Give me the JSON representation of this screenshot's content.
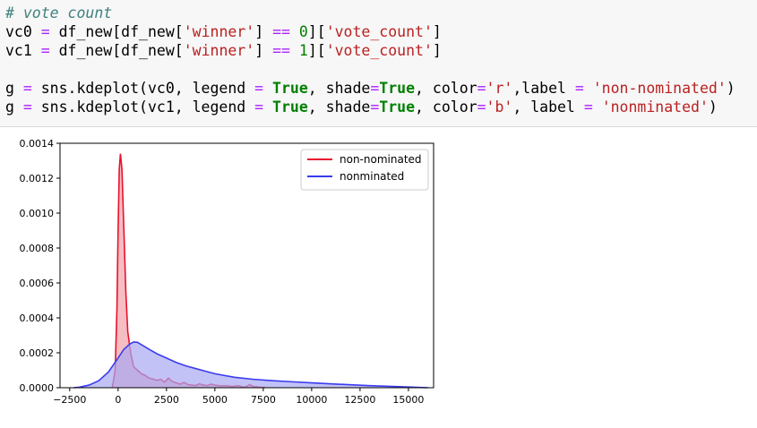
{
  "code_cell": {
    "lines": [
      [
        {
          "t": "# vote count",
          "c": "comment"
        }
      ],
      [
        {
          "t": "vc0 ",
          "c": ""
        },
        {
          "t": "=",
          "c": "op"
        },
        {
          "t": " df_new[df_new[",
          "c": ""
        },
        {
          "t": "'winner'",
          "c": "str"
        },
        {
          "t": "] ",
          "c": ""
        },
        {
          "t": "==",
          "c": "op"
        },
        {
          "t": " ",
          "c": ""
        },
        {
          "t": "0",
          "c": "num"
        },
        {
          "t": "][",
          "c": ""
        },
        {
          "t": "'vote_count'",
          "c": "str"
        },
        {
          "t": "]",
          "c": ""
        }
      ],
      [
        {
          "t": "vc1 ",
          "c": ""
        },
        {
          "t": "=",
          "c": "op"
        },
        {
          "t": " df_new[df_new[",
          "c": ""
        },
        {
          "t": "'winner'",
          "c": "str"
        },
        {
          "t": "] ",
          "c": ""
        },
        {
          "t": "==",
          "c": "op"
        },
        {
          "t": " ",
          "c": ""
        },
        {
          "t": "1",
          "c": "num"
        },
        {
          "t": "][",
          "c": ""
        },
        {
          "t": "'vote_count'",
          "c": "str"
        },
        {
          "t": "]",
          "c": ""
        }
      ],
      [
        {
          "t": "",
          "c": ""
        }
      ],
      [
        {
          "t": "g ",
          "c": ""
        },
        {
          "t": "=",
          "c": "op"
        },
        {
          "t": " sns.kdeplot(vc0, legend ",
          "c": ""
        },
        {
          "t": "=",
          "c": "op"
        },
        {
          "t": " ",
          "c": ""
        },
        {
          "t": "True",
          "c": "kw"
        },
        {
          "t": ", shade",
          "c": ""
        },
        {
          "t": "=",
          "c": "op"
        },
        {
          "t": "True",
          "c": "kw"
        },
        {
          "t": ", color",
          "c": ""
        },
        {
          "t": "=",
          "c": "op"
        },
        {
          "t": "'r'",
          "c": "str"
        },
        {
          "t": ",label ",
          "c": ""
        },
        {
          "t": "=",
          "c": "op"
        },
        {
          "t": " ",
          "c": ""
        },
        {
          "t": "'non-nominated'",
          "c": "str"
        },
        {
          "t": ")",
          "c": ""
        }
      ],
      [
        {
          "t": "g ",
          "c": ""
        },
        {
          "t": "=",
          "c": "op"
        },
        {
          "t": " sns.kdeplot(vc1, legend ",
          "c": ""
        },
        {
          "t": "=",
          "c": "op"
        },
        {
          "t": " ",
          "c": ""
        },
        {
          "t": "True",
          "c": "kw"
        },
        {
          "t": ", shade",
          "c": ""
        },
        {
          "t": "=",
          "c": "op"
        },
        {
          "t": "True",
          "c": "kw"
        },
        {
          "t": ", color",
          "c": ""
        },
        {
          "t": "=",
          "c": "op"
        },
        {
          "t": "'b'",
          "c": "str"
        },
        {
          "t": ", label ",
          "c": ""
        },
        {
          "t": "=",
          "c": "op"
        },
        {
          "t": " ",
          "c": ""
        },
        {
          "t": "'nonminated'",
          "c": "str"
        },
        {
          "t": ")",
          "c": ""
        }
      ]
    ]
  },
  "chart_data": {
    "type": "area",
    "title": "",
    "xlabel": "",
    "ylabel": "",
    "xlim": [
      -3000,
      16300
    ],
    "ylim": [
      0,
      0.0014
    ],
    "x_ticks": [
      -2500,
      0,
      2500,
      5000,
      7500,
      10000,
      12500,
      15000
    ],
    "x_tick_labels": [
      "−2500",
      "0",
      "2500",
      "5000",
      "7500",
      "10000",
      "12500",
      "15000"
    ],
    "y_ticks": [
      0,
      0.0002,
      0.0004,
      0.0006,
      0.0008,
      0.001,
      0.0012,
      0.0014
    ],
    "y_tick_labels": [
      "0.0000",
      "0.0002",
      "0.0004",
      "0.0006",
      "0.0008",
      "0.0010",
      "0.0012",
      "0.0014"
    ],
    "grid": false,
    "legend_position": "top-right",
    "series": [
      {
        "name": "non-nominated",
        "color": "#e8112d",
        "fill": "#f2a1a8",
        "x": [
          -300,
          -150,
          -60,
          0,
          60,
          120,
          200,
          300,
          400,
          500,
          650,
          800,
          1000,
          1200,
          1400,
          1600,
          1800,
          2000,
          2200,
          2400,
          2600,
          2800,
          3000,
          3200,
          3400,
          3600,
          3800,
          4000,
          4200,
          4400,
          4600,
          4800,
          5000,
          5200,
          5400,
          5600,
          5800,
          6000,
          6200,
          6400,
          6600,
          6800,
          7000,
          7200,
          7400,
          7600
        ],
        "y": [
          0,
          0.0001,
          0.00045,
          0.0009,
          0.00125,
          0.00134,
          0.00125,
          0.0009,
          0.00055,
          0.00032,
          0.0002,
          0.00012,
          0.0001,
          8e-05,
          7e-05,
          5.5e-05,
          5e-05,
          4.2e-05,
          4.8e-05,
          3.2e-05,
          5.5e-05,
          3.5e-05,
          2.8e-05,
          2e-05,
          3e-05,
          1.8e-05,
          1.5e-05,
          1.2e-05,
          2.2e-05,
          1.5e-05,
          1.2e-05,
          2e-05,
          1.5e-05,
          1.2e-05,
          1e-05,
          1.2e-05,
          8e-06,
          8e-06,
          1.2e-05,
          5e-06,
          4e-06,
          1.8e-05,
          6e-06,
          4e-06,
          2e-06,
          1e-06
        ]
      },
      {
        "name": "nonminated",
        "color": "#3b3bf0",
        "fill": "#a8a8f2",
        "x": [
          -2300,
          -2000,
          -1500,
          -1000,
          -500,
          0,
          300,
          600,
          800,
          1000,
          1300,
          1600,
          2000,
          2500,
          3000,
          3500,
          4000,
          4500,
          5000,
          6000,
          7000,
          8000,
          9000,
          10000,
          11000,
          12000,
          13000,
          14000,
          15000,
          16000
        ],
        "y": [
          0,
          3e-06,
          1.5e-05,
          4e-05,
          9e-05,
          0.00017,
          0.00022,
          0.00025,
          0.000262,
          0.00026,
          0.00024,
          0.00022,
          0.000195,
          0.00017,
          0.000145,
          0.000125,
          0.00011,
          9.5e-05,
          8e-05,
          6e-05,
          4.8e-05,
          4e-05,
          3.4e-05,
          2.8e-05,
          2.2e-05,
          1.7e-05,
          1.2e-05,
          8e-06,
          4e-06,
          0
        ]
      }
    ]
  }
}
